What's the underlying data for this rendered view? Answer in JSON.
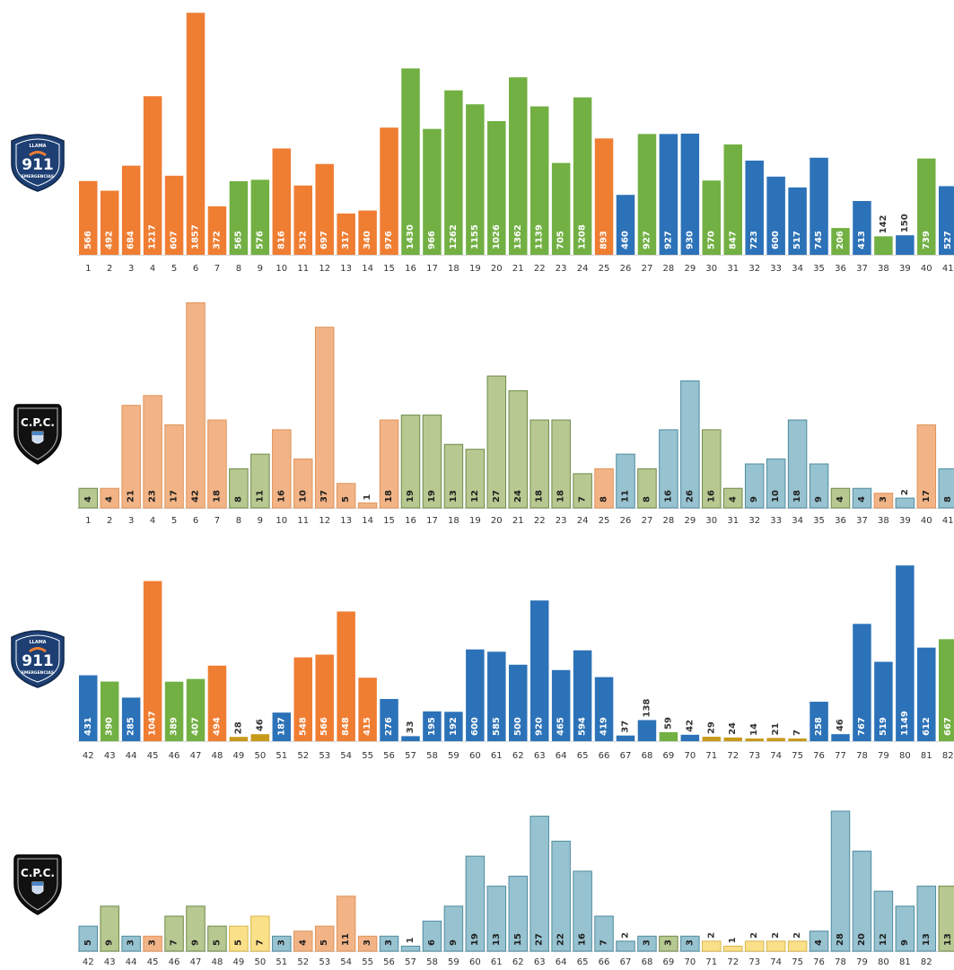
{
  "colors": {
    "orange": "#ef7d32",
    "green": "#72b043",
    "blue": "#2c72b8",
    "gold": "#c89a1c",
    "light_orange": "#f2b486",
    "light_green": "#b7c891",
    "light_blue": "#97c2d0",
    "light_yellow": "#fbe08a",
    "navy": "#1d3f73",
    "black": "#111111"
  },
  "badges": [
    {
      "type": "911",
      "top_text": "LLAMA",
      "main_text": "911",
      "bottom_text": "EMERGENCIAS"
    },
    {
      "type": "cpc",
      "main_text": "C.P.C."
    },
    {
      "type": "911",
      "top_text": "LLAMA",
      "main_text": "911",
      "bottom_text": "EMERGENCIAS"
    },
    {
      "type": "cpc",
      "main_text": "C.P.C."
    }
  ],
  "chart_data": [
    {
      "type": "bar",
      "panel": "911",
      "categories": [
        "1",
        "2",
        "3",
        "4",
        "5",
        "6",
        "7",
        "8",
        "9",
        "10",
        "11",
        "12",
        "13",
        "14",
        "15",
        "16",
        "17",
        "18",
        "19",
        "20",
        "21",
        "22",
        "23",
        "24",
        "25",
        "26",
        "27",
        "28",
        "29",
        "30",
        "31",
        "32",
        "33",
        "34",
        "35",
        "36",
        "37",
        "38",
        "39",
        "40",
        "41"
      ],
      "values": [
        566,
        492,
        684,
        1217,
        607,
        1857,
        372,
        565,
        576,
        816,
        532,
        697,
        317,
        340,
        976,
        1430,
        966,
        1262,
        1155,
        1026,
        1362,
        1139,
        705,
        1208,
        893,
        460,
        927,
        927,
        930,
        570,
        847,
        723,
        600,
        517,
        745,
        206,
        413,
        142,
        150,
        739,
        527
      ],
      "colors": [
        "orange",
        "orange",
        "orange",
        "orange",
        "orange",
        "orange",
        "orange",
        "green",
        "green",
        "orange",
        "orange",
        "orange",
        "orange",
        "orange",
        "orange",
        "green",
        "green",
        "green",
        "green",
        "green",
        "green",
        "green",
        "green",
        "green",
        "orange",
        "blue",
        "green",
        "blue",
        "blue",
        "green",
        "green",
        "blue",
        "blue",
        "blue",
        "blue",
        "green",
        "blue",
        "green",
        "blue",
        "green",
        "blue"
      ],
      "ylim": [
        0,
        1900
      ]
    },
    {
      "type": "bar",
      "panel": "cpc",
      "categories": [
        "1",
        "2",
        "3",
        "4",
        "5",
        "6",
        "7",
        "8",
        "9",
        "10",
        "11",
        "12",
        "13",
        "14",
        "15",
        "16",
        "17",
        "18",
        "19",
        "20",
        "21",
        "22",
        "23",
        "24",
        "25",
        "26",
        "27",
        "28",
        "29",
        "30",
        "31",
        "32",
        "33",
        "34",
        "35",
        "36",
        "37",
        "38",
        "39",
        "40",
        "41"
      ],
      "values": [
        4,
        4,
        21,
        23,
        17,
        42,
        18,
        8,
        11,
        16,
        10,
        37,
        5,
        1,
        18,
        19,
        19,
        13,
        12,
        27,
        24,
        18,
        18,
        7,
        8,
        11,
        8,
        16,
        26,
        16,
        4,
        9,
        10,
        18,
        9,
        4,
        4,
        3,
        2,
        17,
        8
      ],
      "colors": [
        "light_green",
        "light_orange",
        "light_orange",
        "light_orange",
        "light_orange",
        "light_orange",
        "light_orange",
        "light_green",
        "light_green",
        "light_orange",
        "light_orange",
        "light_orange",
        "light_orange",
        "light_orange",
        "light_orange",
        "light_green",
        "light_green",
        "light_green",
        "light_green",
        "light_green",
        "light_green",
        "light_green",
        "light_green",
        "light_green",
        "light_orange",
        "light_blue",
        "light_green",
        "light_blue",
        "light_blue",
        "light_green",
        "light_green",
        "light_blue",
        "light_blue",
        "light_blue",
        "light_blue",
        "light_green",
        "light_blue",
        "light_orange",
        "light_blue",
        "light_orange",
        "light_blue"
      ],
      "ylim": [
        0,
        43
      ]
    },
    {
      "type": "bar",
      "panel": "911",
      "categories": [
        "42",
        "43",
        "44",
        "45",
        "46",
        "47",
        "48",
        "49",
        "50",
        "51",
        "52",
        "53",
        "54",
        "55",
        "56",
        "57",
        "58",
        "59",
        "60",
        "61",
        "62",
        "63",
        "64",
        "65",
        "66",
        "67",
        "68",
        "69",
        "70",
        "71",
        "72",
        "73",
        "74",
        "75",
        "76",
        "77",
        "78",
        "79",
        "80",
        "81",
        "82"
      ],
      "values": [
        431,
        390,
        285,
        1047,
        389,
        407,
        494,
        28,
        46,
        187,
        548,
        566,
        848,
        415,
        276,
        33,
        195,
        192,
        600,
        585,
        500,
        920,
        465,
        594,
        419,
        37,
        138,
        59,
        42,
        29,
        24,
        14,
        21,
        7,
        258,
        46,
        767,
        519,
        1149,
        612,
        667
      ],
      "colors": [
        "blue",
        "green",
        "blue",
        "orange",
        "green",
        "green",
        "orange",
        "gold",
        "gold",
        "blue",
        "orange",
        "orange",
        "orange",
        "orange",
        "blue",
        "blue",
        "blue",
        "blue",
        "blue",
        "blue",
        "blue",
        "blue",
        "blue",
        "blue",
        "blue",
        "blue",
        "blue",
        "green",
        "blue",
        "gold",
        "gold",
        "gold",
        "gold",
        "gold",
        "blue",
        "blue",
        "blue",
        "blue",
        "blue",
        "blue",
        "green"
      ],
      "ylim": [
        0,
        1150
      ]
    },
    {
      "type": "bar",
      "panel": "cpc",
      "categories": [
        "42",
        "43",
        "44",
        "45",
        "46",
        "47",
        "48",
        "49",
        "50",
        "51",
        "52",
        "53",
        "54",
        "55",
        "56",
        "57",
        "58",
        "59",
        "60",
        "61",
        "62",
        "63",
        "64",
        "65",
        "66",
        "67",
        "68",
        "69",
        "70",
        "71",
        "72",
        "73",
        "74",
        "75",
        "76",
        "77",
        "78",
        "79",
        "80",
        "81",
        "82"
      ],
      "values": [
        5,
        9,
        3,
        3,
        7,
        9,
        5,
        5,
        7,
        3,
        4,
        5,
        11,
        3,
        3,
        1,
        6,
        9,
        19,
        13,
        15,
        27,
        22,
        16,
        7,
        2,
        3,
        3,
        3,
        2,
        1,
        2,
        2,
        2,
        4,
        28,
        20,
        12,
        9,
        13,
        13
      ],
      "colors": [
        "light_blue",
        "light_green",
        "light_blue",
        "light_orange",
        "light_green",
        "light_green",
        "light_green",
        "light_yellow",
        "light_yellow",
        "light_blue",
        "light_orange",
        "light_orange",
        "light_orange",
        "light_orange",
        "light_blue",
        "light_blue",
        "light_blue",
        "light_blue",
        "light_blue",
        "light_blue",
        "light_blue",
        "light_blue",
        "light_blue",
        "light_blue",
        "light_blue",
        "light_blue",
        "light_blue",
        "light_green",
        "light_blue",
        "light_yellow",
        "light_yellow",
        "light_yellow",
        "light_yellow",
        "light_yellow",
        "light_blue",
        "light_blue",
        "light_blue",
        "light_blue",
        "light_blue",
        "light_blue",
        "light_green"
      ],
      "tick_labels": [
        "42",
        "43",
        "44",
        "45",
        "46",
        "47",
        "48",
        "49",
        "50",
        "51",
        "52",
        "53",
        "54",
        "55",
        "56",
        "57",
        "58",
        "59",
        "60",
        "61",
        "62",
        "63",
        "64",
        "65",
        "66",
        "67",
        "68",
        "69",
        "70",
        "71",
        "72",
        "73",
        "74",
        "75",
        "76",
        "78",
        "79",
        "80",
        "81",
        "82"
      ],
      "ylim": [
        0,
        28
      ]
    }
  ]
}
